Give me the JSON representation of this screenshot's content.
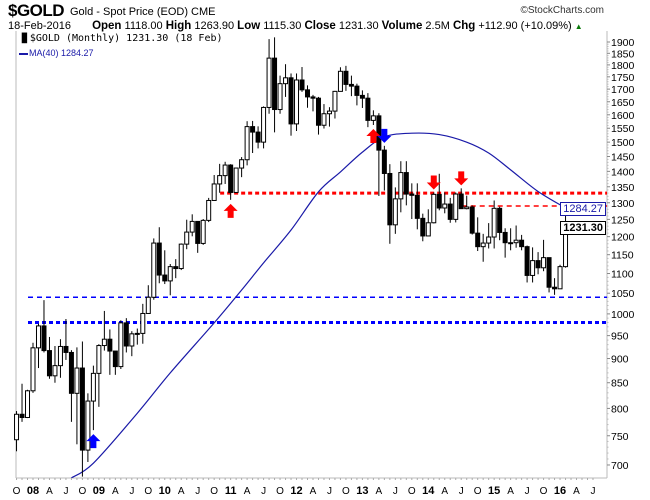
{
  "header": {
    "symbol": "$GOLD",
    "description": "Gold - Spot Price (EOD)",
    "exchange": "CME",
    "copyright": "©StockCharts.com",
    "date": "18-Feb-2016",
    "open_label": "Open",
    "open": "1118.00",
    "high_label": "High",
    "high": "1263.90",
    "low_label": "Low",
    "low": "1115.30",
    "close_label": "Close",
    "close": "1231.30",
    "volume_label": "Volume",
    "volume": "2.5M",
    "chg_label": "Chg",
    "chg": "+112.90 (+10.09%)",
    "chg_direction_icon": "triangle-up-icon",
    "chg_color": "#0a7a0a"
  },
  "legend": {
    "price": "$GOLD (Monthly) 1231.30 (18 Feb)",
    "ma": "MA(40) 1284.27"
  },
  "tags": {
    "ma": "1284.27",
    "close": "1231.30"
  },
  "chart_data": {
    "type": "candlestick",
    "title": "$GOLD Gold - Spot Price (EOD) CME",
    "period": "monthly",
    "y_scale": "log",
    "ylim": [
      680,
      1950
    ],
    "y_ticks": [
      700,
      750,
      800,
      850,
      900,
      950,
      1000,
      1050,
      1100,
      1150,
      1200,
      1250,
      1300,
      1350,
      1400,
      1450,
      1500,
      1550,
      1600,
      1650,
      1700,
      1750,
      1800,
      1850,
      1900
    ],
    "x_ticks": [
      "O",
      "08",
      "A",
      "J",
      "O",
      "09",
      "A",
      "J",
      "O",
      "10",
      "A",
      "J",
      "O",
      "11",
      "A",
      "J",
      "O",
      "12",
      "A",
      "J",
      "O",
      "13",
      "A",
      "J",
      "O",
      "14",
      "A",
      "J",
      "O",
      "15",
      "A",
      "J",
      "O",
      "16",
      "A",
      "J"
    ],
    "grid": false,
    "colors": {
      "up": "#ffffff",
      "down": "#000000",
      "ma": "#1a1aa8",
      "resistance": "#ff0000",
      "support": "#0000ff"
    },
    "ohlc_columns": [
      "date",
      "open",
      "high",
      "low",
      "close"
    ],
    "ohlc": [
      [
        "2007-10",
        743,
        795,
        723,
        789
      ],
      [
        "2007-11",
        789,
        848,
        775,
        783
      ],
      [
        "2007-12",
        783,
        836,
        782,
        834
      ],
      [
        "2008-01",
        834,
        934,
        830,
        923
      ],
      [
        "2008-02",
        923,
        977,
        880,
        972
      ],
      [
        "2008-03",
        972,
        1033,
        913,
        917
      ],
      [
        "2008-04",
        917,
        947,
        858,
        864
      ],
      [
        "2008-05",
        864,
        927,
        850,
        885
      ],
      [
        "2008-06",
        885,
        942,
        860,
        926
      ],
      [
        "2008-07",
        926,
        988,
        897,
        913
      ],
      [
        "2008-08",
        913,
        918,
        775,
        829
      ],
      [
        "2008-09",
        829,
        924,
        735,
        880
      ],
      [
        "2008-10",
        880,
        937,
        681,
        725
      ],
      [
        "2008-11",
        725,
        829,
        705,
        814
      ],
      [
        "2008-12",
        814,
        885,
        760,
        869
      ],
      [
        "2009-01",
        869,
        931,
        803,
        928
      ],
      [
        "2009-02",
        928,
        1007,
        917,
        942
      ],
      [
        "2009-03",
        942,
        964,
        866,
        916
      ],
      [
        "2009-04",
        916,
        915,
        866,
        883
      ],
      [
        "2009-05",
        883,
        985,
        878,
        979
      ],
      [
        "2009-06",
        979,
        990,
        913,
        927
      ],
      [
        "2009-07",
        927,
        960,
        905,
        954
      ],
      [
        "2009-08",
        954,
        966,
        930,
        955
      ],
      [
        "2009-09",
        955,
        1024,
        932,
        1001
      ],
      [
        "2009-10",
        1001,
        1070,
        1002,
        1040
      ],
      [
        "2009-11",
        1040,
        1195,
        1034,
        1182
      ],
      [
        "2009-12",
        1182,
        1227,
        1075,
        1096
      ],
      [
        "2010-01",
        1096,
        1162,
        1073,
        1081
      ],
      [
        "2010-02",
        1081,
        1125,
        1045,
        1118
      ],
      [
        "2010-03",
        1118,
        1138,
        1088,
        1113
      ],
      [
        "2010-04",
        1113,
        1181,
        1109,
        1179
      ],
      [
        "2010-05",
        1179,
        1249,
        1165,
        1213
      ],
      [
        "2010-06",
        1213,
        1265,
        1201,
        1244
      ],
      [
        "2010-07",
        1244,
        1245,
        1155,
        1181
      ],
      [
        "2010-08",
        1181,
        1251,
        1177,
        1247
      ],
      [
        "2010-09",
        1247,
        1315,
        1242,
        1307
      ],
      [
        "2010-10",
        1307,
        1388,
        1315,
        1359
      ],
      [
        "2010-11",
        1359,
        1425,
        1331,
        1386
      ],
      [
        "2010-12",
        1386,
        1432,
        1359,
        1421
      ],
      [
        "2011-01",
        1421,
        1424,
        1309,
        1332
      ],
      [
        "2011-02",
        1332,
        1412,
        1330,
        1411
      ],
      [
        "2011-03",
        1411,
        1448,
        1381,
        1439
      ],
      [
        "2011-04",
        1439,
        1576,
        1420,
        1556
      ],
      [
        "2011-05",
        1556,
        1577,
        1462,
        1536
      ],
      [
        "2011-06",
        1536,
        1557,
        1478,
        1500
      ],
      [
        "2011-07",
        1500,
        1632,
        1478,
        1628
      ],
      [
        "2011-08",
        1628,
        1913,
        1604,
        1829
      ],
      [
        "2011-09",
        1829,
        1921,
        1535,
        1620
      ],
      [
        "2011-10",
        1620,
        1755,
        1604,
        1722
      ],
      [
        "2011-11",
        1722,
        1803,
        1669,
        1746
      ],
      [
        "2011-12",
        1746,
        1764,
        1523,
        1566
      ],
      [
        "2012-01",
        1566,
        1764,
        1540,
        1737
      ],
      [
        "2012-02",
        1737,
        1791,
        1689,
        1697
      ],
      [
        "2012-03",
        1697,
        1715,
        1627,
        1669
      ],
      [
        "2012-04",
        1669,
        1677,
        1613,
        1664
      ],
      [
        "2012-05",
        1664,
        1669,
        1527,
        1561
      ],
      [
        "2012-06",
        1561,
        1641,
        1549,
        1604
      ],
      [
        "2012-07",
        1604,
        1629,
        1556,
        1614
      ],
      [
        "2012-08",
        1614,
        1693,
        1586,
        1691
      ],
      [
        "2012-09",
        1691,
        1790,
        1693,
        1773
      ],
      [
        "2012-10",
        1773,
        1796,
        1693,
        1719
      ],
      [
        "2012-11",
        1719,
        1755,
        1672,
        1712
      ],
      [
        "2012-12",
        1712,
        1722,
        1636,
        1675
      ],
      [
        "2013-01",
        1675,
        1695,
        1626,
        1664
      ],
      [
        "2013-02",
        1664,
        1684,
        1554,
        1579
      ],
      [
        "2013-03",
        1579,
        1617,
        1562,
        1596
      ],
      [
        "2013-04",
        1596,
        1606,
        1321,
        1472
      ],
      [
        "2013-05",
        1472,
        1487,
        1338,
        1393
      ],
      [
        "2013-06",
        1393,
        1424,
        1180,
        1234
      ],
      [
        "2013-07",
        1234,
        1348,
        1208,
        1312
      ],
      [
        "2013-08",
        1312,
        1434,
        1271,
        1396
      ],
      [
        "2013-09",
        1396,
        1434,
        1292,
        1327
      ],
      [
        "2013-10",
        1327,
        1361,
        1251,
        1323
      ],
      [
        "2013-11",
        1323,
        1361,
        1221,
        1253
      ],
      [
        "2013-12",
        1253,
        1267,
        1187,
        1202
      ],
      [
        "2014-01",
        1202,
        1280,
        1202,
        1240
      ],
      [
        "2014-02",
        1240,
        1332,
        1238,
        1326
      ],
      [
        "2014-03",
        1326,
        1392,
        1277,
        1284
      ],
      [
        "2014-04",
        1284,
        1332,
        1268,
        1296
      ],
      [
        "2014-05",
        1296,
        1315,
        1240,
        1250
      ],
      [
        "2014-06",
        1250,
        1332,
        1241,
        1327
      ],
      [
        "2014-07",
        1327,
        1345,
        1282,
        1282
      ],
      [
        "2014-08",
        1282,
        1322,
        1280,
        1287
      ],
      [
        "2014-09",
        1287,
        1292,
        1206,
        1210
      ],
      [
        "2014-10",
        1210,
        1256,
        1160,
        1172
      ],
      [
        "2014-11",
        1172,
        1208,
        1131,
        1182
      ],
      [
        "2014-12",
        1182,
        1239,
        1167,
        1199
      ],
      [
        "2015-01",
        1199,
        1307,
        1167,
        1283
      ],
      [
        "2015-02",
        1283,
        1288,
        1190,
        1212
      ],
      [
        "2015-03",
        1212,
        1224,
        1142,
        1183
      ],
      [
        "2015-04",
        1183,
        1224,
        1162,
        1183
      ],
      [
        "2015-05",
        1183,
        1232,
        1169,
        1190
      ],
      [
        "2015-06",
        1190,
        1205,
        1162,
        1172
      ],
      [
        "2015-07",
        1172,
        1175,
        1077,
        1095
      ],
      [
        "2015-08",
        1095,
        1170,
        1077,
        1134
      ],
      [
        "2015-09",
        1134,
        1157,
        1098,
        1115
      ],
      [
        "2015-10",
        1115,
        1191,
        1106,
        1142
      ],
      [
        "2015-11",
        1142,
        1142,
        1052,
        1065
      ],
      [
        "2015-12",
        1065,
        1088,
        1046,
        1061
      ],
      [
        "2016-01",
        1061,
        1123,
        1061,
        1118
      ],
      [
        "2016-02",
        1118,
        1263.9,
        1115.3,
        1231.3
      ]
    ],
    "ma40": [
      [
        "2008-08",
        679
      ],
      [
        "2008-12",
        703
      ],
      [
        "2009-08",
        791
      ],
      [
        "2010-02",
        870
      ],
      [
        "2010-10",
        979
      ],
      [
        "2011-03",
        1058
      ],
      [
        "2011-07",
        1128
      ],
      [
        "2011-12",
        1219
      ],
      [
        "2012-05",
        1334
      ],
      [
        "2012-09",
        1398
      ],
      [
        "2013-01",
        1465
      ],
      [
        "2013-05",
        1519
      ],
      [
        "2013-10",
        1532
      ],
      [
        "2014-03",
        1527
      ],
      [
        "2014-08",
        1500
      ],
      [
        "2014-12",
        1462
      ],
      [
        "2015-04",
        1405
      ],
      [
        "2015-09",
        1335
      ],
      [
        "2016-02",
        1284.27
      ]
    ],
    "horizontal_lines": [
      {
        "level": 1330,
        "color": "#ff0000",
        "style": "thick-dotted",
        "from": "2010-12"
      },
      {
        "level": 1290,
        "color": "#ff0000",
        "style": "dashed",
        "from": "2014-08"
      },
      {
        "level": 1040,
        "color": "#0000ff",
        "style": "dashed",
        "from": "2008-01"
      },
      {
        "level": 980,
        "color": "#0000ff",
        "style": "thick-dotted",
        "from": "2008-01"
      }
    ],
    "arrows": [
      {
        "date": "2008-12",
        "direction": "up",
        "color": "#0000ff"
      },
      {
        "date": "2011-01",
        "direction": "up",
        "color": "#ff0000"
      },
      {
        "date": "2013-03",
        "direction": "up",
        "color": "#ff0000"
      },
      {
        "date": "2013-05",
        "direction": "down",
        "color": "#0000ff"
      },
      {
        "date": "2014-02",
        "direction": "down",
        "color": "#ff0000"
      },
      {
        "date": "2014-07",
        "direction": "down",
        "color": "#ff0000"
      }
    ]
  }
}
